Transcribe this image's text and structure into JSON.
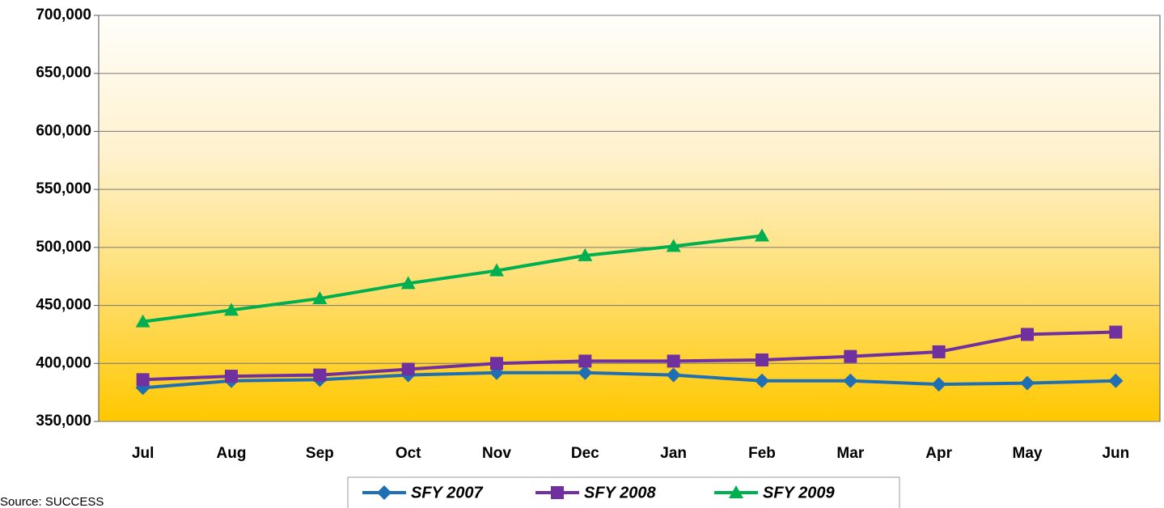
{
  "chart_data": {
    "type": "line",
    "categories": [
      "Jul",
      "Aug",
      "Sep",
      "Oct",
      "Nov",
      "Dec",
      "Jan",
      "Feb",
      "Mar",
      "Apr",
      "May",
      "Jun"
    ],
    "series": [
      {
        "name": "SFY 2007",
        "color": "#1f6fb5",
        "marker": "diamond",
        "values": [
          379000,
          385000,
          386000,
          390000,
          392000,
          392000,
          390000,
          385000,
          385000,
          382000,
          383000,
          385000
        ]
      },
      {
        "name": "SFY 2008",
        "color": "#7030a0",
        "marker": "square",
        "values": [
          386000,
          389000,
          390000,
          395000,
          400000,
          402000,
          402000,
          403000,
          406000,
          410000,
          425000,
          427000
        ]
      },
      {
        "name": "SFY 2009",
        "color": "#00b050",
        "marker": "triangle",
        "values": [
          436000,
          446000,
          456000,
          469000,
          480000,
          493000,
          501000,
          510000,
          null,
          null,
          null,
          null
        ]
      }
    ],
    "ylim": [
      350000,
      700000
    ],
    "yticks": [
      {
        "value": 350000,
        "label": "350,000"
      },
      {
        "value": 400000,
        "label": "400,000"
      },
      {
        "value": 450000,
        "label": "450,000"
      },
      {
        "value": 500000,
        "label": "500,000"
      },
      {
        "value": 550000,
        "label": "550,000"
      },
      {
        "value": 600000,
        "label": "600,000"
      },
      {
        "value": 650000,
        "label": "650,000"
      },
      {
        "value": 700000,
        "label": "700,000"
      }
    ],
    "grid": true,
    "legend": "bottom",
    "source": "Source: SUCCESS"
  }
}
